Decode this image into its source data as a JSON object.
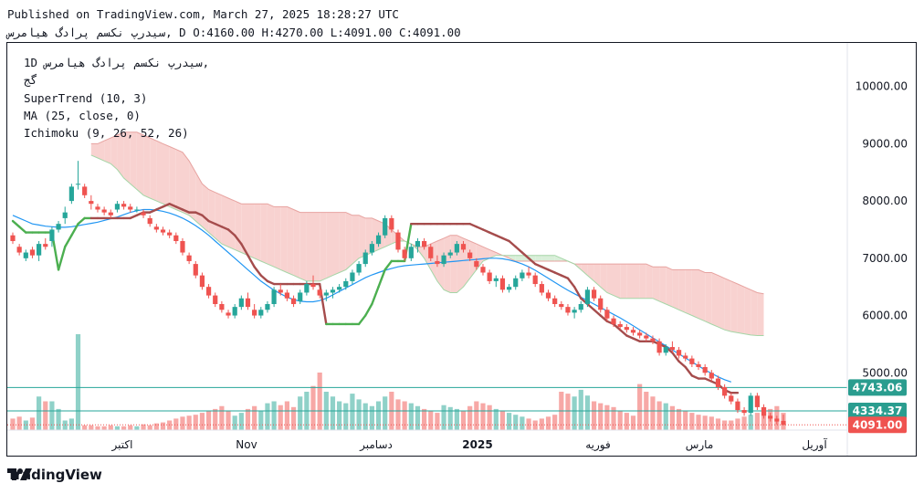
{
  "header": {
    "published_line": "Published on TradingView.com, March 27, 2025 18:28:27 UTC",
    "symbol_name": "سیدرپ نکسم پرادگ هیامرس",
    "ohlc_line": ", D O:4160.00 H:4270.00 L:4091.00 C:4091.00"
  },
  "legend": {
    "title": "1D سیدرپ نکسم پرادگ هیامرس,",
    "subtitle": "گج",
    "supertrend": "SuperTrend (10, 3)",
    "ma": "MA (25, close, 0)",
    "ichimoku": "Ichimoku (9, 26, 52, 26)"
  },
  "branding": {
    "text": "TradingView",
    "logo_icon": "tradingview-logo-icon"
  },
  "colors": {
    "up": "#26a69a",
    "down": "#ef5350",
    "up_vol": "#8fd1c8",
    "down_vol": "#f7a8a6",
    "supertrend_up": "#4caf50",
    "supertrend_down": "#a54c4c",
    "ma": "#2196f3",
    "cloud_red": "#f8d2d0",
    "cloud_green": "#d9efd9",
    "price_line": "#26a69a"
  },
  "chart_data": {
    "type": "candlestick",
    "y_ticks": [
      "10000.00",
      "9000.00",
      "8000.00",
      "7000.00",
      "6000.00",
      "5000.00"
    ],
    "ylim": [
      4000,
      10600
    ],
    "x_labels": [
      "اکتبر",
      "Nov",
      "دسامبر",
      "2025",
      "فوریه",
      "مارس",
      "آوریل"
    ],
    "price_labels": [
      {
        "value": 4743.06,
        "text": "4743.06"
      },
      {
        "value": 4334.37,
        "text": "4334.37"
      },
      {
        "value": 4091.0,
        "text": "4091.00"
      }
    ],
    "last": {
      "open": 4160.0,
      "high": 4270.0,
      "low": 4091.0,
      "close": 4091.0
    },
    "candles": [
      [
        7400,
        7450,
        7250,
        7300
      ],
      [
        7200,
        7250,
        7050,
        7100
      ],
      [
        7000,
        7150,
        6950,
        7100
      ],
      [
        7150,
        7200,
        7000,
        7050
      ],
      [
        7050,
        7300,
        6950,
        7250
      ],
      [
        7250,
        7350,
        7150,
        7200
      ],
      [
        7300,
        7550,
        7200,
        7500
      ],
      [
        7500,
        7650,
        7450,
        7600
      ],
      [
        7700,
        7900,
        7600,
        7800
      ],
      [
        8000,
        8300,
        7950,
        8250
      ],
      [
        8300,
        8700,
        8200,
        8300
      ],
      [
        8250,
        8300,
        8050,
        8100
      ],
      [
        8000,
        8100,
        7850,
        7950
      ],
      [
        7900,
        7950,
        7800,
        7850
      ],
      [
        7850,
        7900,
        7750,
        7800
      ],
      [
        7800,
        7850,
        7700,
        7750
      ],
      [
        7850,
        8000,
        7800,
        7950
      ],
      [
        7950,
        8000,
        7850,
        7900
      ],
      [
        7900,
        7950,
        7800,
        7850
      ],
      [
        7850,
        7900,
        7800,
        7850
      ],
      [
        7800,
        7850,
        7700,
        7750
      ],
      [
        7700,
        7750,
        7550,
        7600
      ],
      [
        7550,
        7600,
        7450,
        7500
      ],
      [
        7500,
        7550,
        7400,
        7450
      ],
      [
        7450,
        7500,
        7350,
        7400
      ],
      [
        7400,
        7450,
        7250,
        7300
      ],
      [
        7300,
        7350,
        7050,
        7100
      ],
      [
        7050,
        7100,
        6900,
        6950
      ],
      [
        6900,
        6950,
        6650,
        6700
      ],
      [
        6700,
        6750,
        6450,
        6500
      ],
      [
        6500,
        6550,
        6300,
        6350
      ],
      [
        6350,
        6400,
        6150,
        6200
      ],
      [
        6200,
        6250,
        6050,
        6100
      ],
      [
        6050,
        6100,
        5950,
        6000
      ],
      [
        6000,
        6200,
        5950,
        6150
      ],
      [
        6150,
        6350,
        6100,
        6300
      ],
      [
        6300,
        6400,
        6100,
        6150
      ],
      [
        6100,
        6200,
        5950,
        6000
      ],
      [
        6000,
        6150,
        5950,
        6100
      ],
      [
        6100,
        6250,
        6050,
        6200
      ],
      [
        6200,
        6500,
        6150,
        6450
      ],
      [
        6450,
        6550,
        6350,
        6400
      ],
      [
        6400,
        6450,
        6250,
        6300
      ],
      [
        6300,
        6350,
        6150,
        6200
      ],
      [
        6250,
        6450,
        6200,
        6400
      ],
      [
        6400,
        6600,
        6350,
        6550
      ],
      [
        6550,
        6700,
        6450,
        6500
      ],
      [
        6450,
        6500,
        6300,
        6350
      ],
      [
        6350,
        6450,
        6250,
        6400
      ],
      [
        6400,
        6500,
        6300,
        6450
      ],
      [
        6450,
        6550,
        6400,
        6500
      ],
      [
        6500,
        6650,
        6450,
        6600
      ],
      [
        6600,
        6800,
        6550,
        6750
      ],
      [
        6750,
        6950,
        6700,
        6900
      ],
      [
        6900,
        7150,
        6850,
        7100
      ],
      [
        7100,
        7300,
        7050,
        7250
      ],
      [
        7250,
        7450,
        7200,
        7400
      ],
      [
        7400,
        7750,
        7350,
        7700
      ],
      [
        7700,
        7750,
        7450,
        7500
      ],
      [
        7450,
        7500,
        7100,
        7150
      ],
      [
        7150,
        7200,
        6950,
        7000
      ],
      [
        7000,
        7250,
        6950,
        7200
      ],
      [
        7200,
        7350,
        7100,
        7300
      ],
      [
        7300,
        7350,
        7150,
        7200
      ],
      [
        7200,
        7250,
        6950,
        7000
      ],
      [
        6950,
        7050,
        6850,
        6900
      ],
      [
        6900,
        7100,
        6850,
        7050
      ],
      [
        7050,
        7150,
        7000,
        7100
      ],
      [
        7100,
        7300,
        7050,
        7250
      ],
      [
        7250,
        7300,
        7100,
        7150
      ],
      [
        7100,
        7150,
        6950,
        7000
      ],
      [
        6950,
        7000,
        6800,
        6850
      ],
      [
        6850,
        6900,
        6700,
        6750
      ],
      [
        6750,
        6800,
        6550,
        6600
      ],
      [
        6600,
        6700,
        6500,
        6650
      ],
      [
        6650,
        6700,
        6400,
        6450
      ],
      [
        6450,
        6550,
        6400,
        6500
      ],
      [
        6500,
        6700,
        6450,
        6650
      ],
      [
        6650,
        6800,
        6600,
        6750
      ],
      [
        6750,
        6850,
        6650,
        6700
      ],
      [
        6700,
        6750,
        6500,
        6550
      ],
      [
        6550,
        6600,
        6350,
        6400
      ],
      [
        6400,
        6450,
        6250,
        6300
      ],
      [
        6300,
        6350,
        6150,
        6200
      ],
      [
        6200,
        6250,
        6100,
        6150
      ],
      [
        6150,
        6200,
        6000,
        6050
      ],
      [
        6050,
        6150,
        5950,
        6100
      ],
      [
        6100,
        6250,
        6050,
        6200
      ],
      [
        6200,
        6500,
        6150,
        6450
      ],
      [
        6450,
        6500,
        6250,
        6300
      ],
      [
        6300,
        6350,
        6050,
        6100
      ],
      [
        6100,
        6150,
        5900,
        5950
      ],
      [
        5950,
        6000,
        5800,
        5850
      ],
      [
        5850,
        5900,
        5750,
        5800
      ],
      [
        5800,
        5850,
        5700,
        5750
      ],
      [
        5750,
        5800,
        5650,
        5700
      ],
      [
        5700,
        5750,
        5600,
        5650
      ],
      [
        5650,
        5700,
        5550,
        5600
      ],
      [
        5600,
        5650,
        5500,
        5550
      ],
      [
        5550,
        5600,
        5300,
        5350
      ],
      [
        5350,
        5500,
        5300,
        5450
      ],
      [
        5450,
        5550,
        5350,
        5400
      ],
      [
        5400,
        5450,
        5250,
        5300
      ],
      [
        5300,
        5350,
        5200,
        5250
      ],
      [
        5250,
        5300,
        5100,
        5150
      ],
      [
        5150,
        5200,
        5050,
        5100
      ],
      [
        5100,
        5150,
        4950,
        5000
      ],
      [
        5000,
        5050,
        4850,
        4900
      ],
      [
        4900,
        4950,
        4700,
        4750
      ],
      [
        4750,
        4800,
        4550,
        4600
      ],
      [
        4600,
        4650,
        4450,
        4500
      ],
      [
        4500,
        4550,
        4300,
        4350
      ],
      [
        4350,
        4400,
        4250,
        4300
      ],
      [
        4300,
        4650,
        4250,
        4600
      ],
      [
        4600,
        4650,
        4350,
        4400
      ],
      [
        4400,
        4450,
        4200,
        4250
      ],
      [
        4250,
        4300,
        4150,
        4200
      ],
      [
        4200,
        4250,
        4100,
        4150
      ],
      [
        4160,
        4270,
        4091,
        4091
      ]
    ],
    "volumes": [
      0.12,
      0.14,
      0.1,
      0.13,
      0.35,
      0.3,
      0.3,
      0.22,
      0.1,
      0.12,
      1.0,
      0.05,
      0.05,
      0.04,
      0.04,
      0.05,
      0.04,
      0.04,
      0.05,
      0.04,
      0.06,
      0.05,
      0.07,
      0.08,
      0.1,
      0.12,
      0.14,
      0.15,
      0.16,
      0.18,
      0.2,
      0.22,
      0.25,
      0.2,
      0.15,
      0.18,
      0.22,
      0.25,
      0.2,
      0.28,
      0.3,
      0.26,
      0.3,
      0.24,
      0.35,
      0.4,
      0.46,
      0.6,
      0.4,
      0.35,
      0.3,
      0.28,
      0.38,
      0.32,
      0.28,
      0.25,
      0.3,
      0.35,
      0.4,
      0.32,
      0.3,
      0.28,
      0.25,
      0.22,
      0.2,
      0.18,
      0.26,
      0.24,
      0.22,
      0.2,
      0.25,
      0.3,
      0.28,
      0.26,
      0.22,
      0.2,
      0.18,
      0.16,
      0.14,
      0.12,
      0.1,
      0.12,
      0.14,
      0.16,
      0.4,
      0.38,
      0.35,
      0.42,
      0.36,
      0.3,
      0.28,
      0.26,
      0.24,
      0.2,
      0.18,
      0.15,
      0.48,
      0.4,
      0.35,
      0.3,
      0.28,
      0.25,
      0.22,
      0.2,
      0.18,
      0.16,
      0.15,
      0.14,
      0.12,
      0.1,
      0.1,
      0.12,
      0.14,
      0.16,
      0.18,
      0.2,
      0.22,
      0.25,
      0.18
    ],
    "ma": [
      7750,
      7700,
      7650,
      7600,
      7580,
      7560,
      7550,
      7540,
      7540,
      7550,
      7570,
      7590,
      7610,
      7630,
      7660,
      7690,
      7720,
      7760,
      7800,
      7830,
      7850,
      7850,
      7840,
      7820,
      7790,
      7750,
      7700,
      7640,
      7570,
      7490,
      7400,
      7300,
      7200,
      7100,
      7000,
      6900,
      6800,
      6700,
      6600,
      6520,
      6440,
      6380,
      6320,
      6280,
      6250,
      6240,
      6240,
      6260,
      6300,
      6360,
      6420,
      6480,
      6540,
      6600,
      6660,
      6710,
      6750,
      6790,
      6820,
      6850,
      6870,
      6880,
      6890,
      6900,
      6910,
      6920,
      6930,
      6940,
      6950,
      6960,
      6970,
      6980,
      6990,
      7000,
      7000,
      6990,
      6970,
      6940,
      6900,
      6850,
      6790,
      6720,
      6650,
      6580,
      6510,
      6440,
      6380,
      6320,
      6260,
      6200,
      6140,
      6080,
      6020,
      5960,
      5890,
      5820,
      5750,
      5680,
      5610,
      5540,
      5470,
      5400,
      5330,
      5260,
      5190,
      5120,
      5050,
      4990,
      4930,
      4880,
      4840
    ],
    "supertrend": [
      7650,
      7550,
      7450,
      7450,
      7450,
      7450,
      7450,
      6800,
      7200,
      7400,
      7600,
      7700,
      7700,
      7700,
      7700,
      7700,
      7700,
      7700,
      7700,
      7750,
      7800,
      7800,
      7850,
      7900,
      7950,
      7900,
      7850,
      7800,
      7800,
      7750,
      7650,
      7600,
      7550,
      7500,
      7400,
      7250,
      7050,
      6850,
      6700,
      6600,
      6550,
      6550,
      6550,
      6550,
      6550,
      6550,
      6550,
      6550,
      5850,
      5850,
      5850,
      5850,
      5850,
      5850,
      6000,
      6200,
      6500,
      6800,
      6950,
      6950,
      6950,
      7600,
      7600,
      7600,
      7600,
      7600,
      7600,
      7600,
      7600,
      7600,
      7600,
      7550,
      7500,
      7450,
      7400,
      7350,
      7300,
      7200,
      7100,
      7000,
      6900,
      6850,
      6800,
      6750,
      6700,
      6650,
      6500,
      6300,
      6200,
      6100,
      6000,
      5900,
      5850,
      5750,
      5650,
      5600,
      5550,
      5550,
      5550,
      5500,
      5450,
      5350,
      5200,
      5100,
      4950,
      4900,
      4900,
      4850,
      4800,
      4700,
      4650,
      4650
    ],
    "supertrend_flip": 56,
    "cloud_top": [
      9000,
      9000,
      9050,
      9100,
      9150,
      9200,
      9200,
      9200,
      9150,
      9100,
      9050,
      9000,
      8950,
      8900,
      8850,
      8700,
      8500,
      8300,
      8200,
      8150,
      8100,
      8050,
      8000,
      7950,
      7950,
      7950,
      7950,
      7950,
      7900,
      7900,
      7900,
      7850,
      7800,
      7800,
      7800,
      7800,
      7800,
      7800,
      7800,
      7800,
      7750,
      7750,
      7700,
      7700,
      7650,
      7600,
      7500,
      7400,
      7300,
      7250,
      7200,
      7200,
      7250,
      7300,
      7350,
      7400,
      7400,
      7350,
      7300,
      7250,
      7200,
      7150,
      7100,
      7050,
      7000,
      6950,
      6950,
      6950,
      6950,
      6950,
      6950,
      6950,
      6950,
      6950,
      6900,
      6900,
      6900,
      6900,
      6900,
      6900,
      6900,
      6900,
      6900,
      6900,
      6900,
      6900,
      6850,
      6850,
      6850,
      6800,
      6800,
      6800,
      6800,
      6800,
      6750,
      6750,
      6700,
      6650,
      6600,
      6550,
      6500,
      6450,
      6400,
      6380
    ],
    "cloud_bottom": [
      8800,
      8750,
      8700,
      8650,
      8550,
      8400,
      8300,
      8200,
      8100,
      8050,
      8000,
      7950,
      7900,
      7850,
      7800,
      7750,
      7650,
      7550,
      7450,
      7350,
      7250,
      7200,
      7150,
      7100,
      7050,
      7000,
      6950,
      6900,
      6850,
      6800,
      6750,
      6700,
      6650,
      6600,
      6600,
      6600,
      6650,
      6700,
      6750,
      6800,
      6900,
      7000,
      7050,
      7100,
      7150,
      7200,
      7250,
      7300,
      7300,
      7250,
      7150,
      7000,
      6800,
      6600,
      6450,
      6400,
      6400,
      6500,
      6650,
      6800,
      6950,
      7000,
      7050,
      7050,
      7050,
      7050,
      7050,
      7050,
      7050,
      7050,
      7050,
      7050,
      7000,
      6950,
      6900,
      6800,
      6700,
      6600,
      6500,
      6400,
      6350,
      6300,
      6300,
      6300,
      6300,
      6300,
      6300,
      6250,
      6200,
      6150,
      6100,
      6050,
      6000,
      5950,
      5900,
      5850,
      5800,
      5750,
      5720,
      5700,
      5680,
      5660,
      5650,
      5650
    ]
  }
}
